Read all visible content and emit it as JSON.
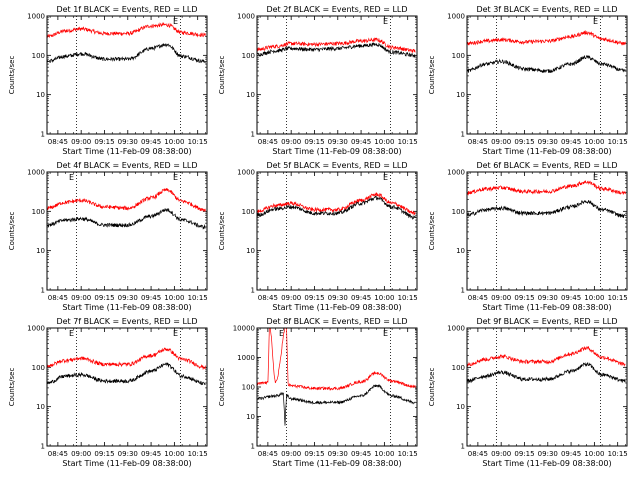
{
  "chart_data": [
    {
      "type": "line",
      "title": "Det 1f BLACK = Events, RED = LLD",
      "xlabel": "Start Time (11-Feb-09 08:38:00)",
      "ylabel": "Counts/sec",
      "yscale": "log",
      "ylim": [
        1,
        1000
      ],
      "yticks": [
        "1",
        "10",
        "100",
        "1000"
      ],
      "xlim": [
        "08:38",
        "10:21"
      ],
      "xticks": [
        "08:45",
        "09:00",
        "09:15",
        "09:30",
        "09:45",
        "10:00",
        "10:15"
      ],
      "markers": [
        {
          "time": "08:57",
          "label": ""
        },
        {
          "time": "10:04",
          "label": "E"
        }
      ],
      "grid": false,
      "series": [
        {
          "color": "#ff0000",
          "x": [
            "08:38",
            "08:50",
            "09:00",
            "09:15",
            "09:30",
            "09:45",
            "09:55",
            "10:05",
            "10:20"
          ],
          "y": [
            300,
            420,
            470,
            360,
            360,
            560,
            600,
            380,
            330
          ]
        },
        {
          "color": "#000000",
          "x": [
            "08:38",
            "08:50",
            "09:00",
            "09:15",
            "09:30",
            "09:45",
            "09:55",
            "10:05",
            "10:20"
          ],
          "y": [
            70,
            95,
            110,
            80,
            80,
            150,
            190,
            95,
            70
          ]
        }
      ]
    },
    {
      "type": "line",
      "title": "Det 2f BLACK = Events, RED = LLD",
      "xlabel": "Start Time (11-Feb-09 08:38:00)",
      "ylabel": "Counts/sec",
      "yscale": "log",
      "ylim": [
        1,
        1000
      ],
      "yticks": [
        "1",
        "10",
        "100",
        "1000"
      ],
      "xlim": [
        "08:38",
        "10:21"
      ],
      "xticks": [
        "08:45",
        "09:00",
        "09:15",
        "09:30",
        "09:45",
        "10:00",
        "10:15"
      ],
      "markers": [
        {
          "time": "08:57",
          "label": ""
        },
        {
          "time": "10:04",
          "label": "E"
        }
      ],
      "grid": false,
      "series": [
        {
          "color": "#ff0000",
          "x": [
            "08:38",
            "08:50",
            "09:00",
            "09:15",
            "09:30",
            "09:45",
            "09:55",
            "10:05",
            "10:20"
          ],
          "y": [
            140,
            170,
            200,
            190,
            200,
            230,
            250,
            160,
            130
          ]
        },
        {
          "color": "#000000",
          "x": [
            "08:38",
            "08:50",
            "09:00",
            "09:15",
            "09:30",
            "09:45",
            "09:55",
            "10:05",
            "10:20"
          ],
          "y": [
            105,
            130,
            150,
            140,
            150,
            175,
            190,
            120,
            100
          ]
        }
      ]
    },
    {
      "type": "line",
      "title": "Det 3f BLACK = Events, RED = LLD",
      "xlabel": "Start Time (11-Feb-09 08:38:00)",
      "ylabel": "Counts/sec",
      "yscale": "log",
      "ylim": [
        1,
        1000
      ],
      "yticks": [
        "1",
        "10",
        "100",
        "1000"
      ],
      "xlim": [
        "08:38",
        "10:21"
      ],
      "xticks": [
        "08:45",
        "09:00",
        "09:15",
        "09:30",
        "09:45",
        "10:00",
        "10:15"
      ],
      "markers": [
        {
          "time": "08:57",
          "label": ""
        },
        {
          "time": "10:04",
          "label": "E"
        }
      ],
      "grid": false,
      "series": [
        {
          "color": "#ff0000",
          "x": [
            "08:38",
            "08:50",
            "09:00",
            "09:15",
            "09:30",
            "09:45",
            "09:55",
            "10:05",
            "10:20"
          ],
          "y": [
            200,
            230,
            250,
            220,
            230,
            300,
            380,
            260,
            200
          ]
        },
        {
          "color": "#000000",
          "x": [
            "08:38",
            "08:50",
            "09:00",
            "09:15",
            "09:30",
            "09:45",
            "09:55",
            "10:05",
            "10:20"
          ],
          "y": [
            40,
            60,
            70,
            45,
            40,
            60,
            90,
            60,
            40
          ]
        }
      ]
    },
    {
      "type": "line",
      "title": "Det 4f BLACK = Events, RED = LLD",
      "xlabel": "Start Time (11-Feb-09 08:38:00)",
      "ylabel": "Counts/sec",
      "yscale": "log",
      "ylim": [
        1,
        1000
      ],
      "yticks": [
        "1",
        "10",
        "100",
        "1000"
      ],
      "xlim": [
        "08:38",
        "10:21"
      ],
      "xticks": [
        "08:45",
        "09:00",
        "09:15",
        "09:30",
        "09:45",
        "10:00",
        "10:15"
      ],
      "markers": [
        {
          "time": "08:57",
          "label": "E"
        },
        {
          "time": "10:04",
          "label": "E"
        }
      ],
      "grid": false,
      "series": [
        {
          "color": "#ff0000",
          "x": [
            "08:38",
            "08:50",
            "09:00",
            "09:15",
            "09:30",
            "09:45",
            "09:55",
            "10:05",
            "10:20"
          ],
          "y": [
            120,
            170,
            190,
            130,
            120,
            220,
            350,
            180,
            110
          ]
        },
        {
          "color": "#000000",
          "x": [
            "08:38",
            "08:50",
            "09:00",
            "09:15",
            "09:30",
            "09:45",
            "09:55",
            "10:05",
            "10:20"
          ],
          "y": [
            45,
            60,
            65,
            45,
            45,
            75,
            110,
            60,
            40
          ]
        }
      ]
    },
    {
      "type": "line",
      "title": "Det 5f BLACK = Events, RED = LLD",
      "xlabel": "Start Time (11-Feb-09 08:38:00)",
      "ylabel": "Counts/sec",
      "yscale": "log",
      "ylim": [
        1,
        1000
      ],
      "yticks": [
        "1",
        "10",
        "100",
        "1000"
      ],
      "xlim": [
        "08:38",
        "10:21"
      ],
      "xticks": [
        "08:45",
        "09:00",
        "09:15",
        "09:30",
        "09:45",
        "10:00",
        "10:15"
      ],
      "markers": [
        {
          "time": "08:57",
          "label": ""
        },
        {
          "time": "10:04",
          "label": "E"
        }
      ],
      "grid": false,
      "series": [
        {
          "color": "#ff0000",
          "x": [
            "08:38",
            "08:50",
            "09:00",
            "09:15",
            "09:30",
            "09:45",
            "09:55",
            "10:05",
            "10:20"
          ],
          "y": [
            100,
            140,
            160,
            110,
            110,
            190,
            270,
            160,
            90
          ]
        },
        {
          "color": "#000000",
          "x": [
            "08:38",
            "08:50",
            "09:00",
            "09:15",
            "09:30",
            "09:45",
            "09:55",
            "10:05",
            "10:20"
          ],
          "y": [
            80,
            115,
            130,
            90,
            90,
            160,
            220,
            130,
            70
          ]
        }
      ]
    },
    {
      "type": "line",
      "title": "Det 6f BLACK = Events, RED = LLD",
      "xlabel": "Start Time (11-Feb-09 08:38:00)",
      "ylabel": "Counts/sec",
      "yscale": "log",
      "ylim": [
        1,
        1000
      ],
      "yticks": [
        "1",
        "10",
        "100",
        "1000"
      ],
      "xlim": [
        "08:38",
        "10:21"
      ],
      "xticks": [
        "08:45",
        "09:00",
        "09:15",
        "09:30",
        "09:45",
        "10:00",
        "10:15"
      ],
      "markers": [
        {
          "time": "08:57",
          "label": ""
        },
        {
          "time": "10:04",
          "label": "E"
        }
      ],
      "grid": false,
      "series": [
        {
          "color": "#ff0000",
          "x": [
            "08:38",
            "08:50",
            "09:00",
            "09:15",
            "09:30",
            "09:45",
            "09:55",
            "10:05",
            "10:20"
          ],
          "y": [
            300,
            370,
            400,
            320,
            320,
            440,
            560,
            380,
            290
          ]
        },
        {
          "color": "#000000",
          "x": [
            "08:38",
            "08:50",
            "09:00",
            "09:15",
            "09:30",
            "09:45",
            "09:55",
            "10:05",
            "10:20"
          ],
          "y": [
            80,
            110,
            120,
            90,
            90,
            130,
            180,
            110,
            75
          ]
        }
      ]
    },
    {
      "type": "line",
      "title": "Det 7f BLACK = Events, RED = LLD",
      "xlabel": "Start Time (11-Feb-09 08:38:00)",
      "ylabel": "Counts/sec",
      "yscale": "log",
      "ylim": [
        1,
        1000
      ],
      "yticks": [
        "1",
        "10",
        "100",
        "1000"
      ],
      "xlim": [
        "08:38",
        "10:21"
      ],
      "xticks": [
        "08:45",
        "09:00",
        "09:15",
        "09:30",
        "09:45",
        "10:00",
        "10:15"
      ],
      "markers": [
        {
          "time": "08:57",
          "label": "E"
        },
        {
          "time": "10:04",
          "label": "E"
        }
      ],
      "grid": false,
      "series": [
        {
          "color": "#ff0000",
          "x": [
            "08:38",
            "08:50",
            "09:00",
            "09:15",
            "09:30",
            "09:45",
            "09:55",
            "10:05",
            "10:20"
          ],
          "y": [
            110,
            150,
            170,
            120,
            120,
            200,
            290,
            160,
            100
          ]
        },
        {
          "color": "#000000",
          "x": [
            "08:38",
            "08:50",
            "09:00",
            "09:15",
            "09:30",
            "09:45",
            "09:55",
            "10:05",
            "10:20"
          ],
          "y": [
            40,
            60,
            65,
            45,
            45,
            80,
            120,
            60,
            38
          ]
        }
      ]
    },
    {
      "type": "line",
      "title": "Det 8f BLACK = Events, RED = LLD",
      "xlabel": "Start Time (11-Feb-09 08:38:00)",
      "ylabel": "Counts/sec",
      "yscale": "log",
      "ylim": [
        1,
        10000
      ],
      "yticks": [
        "1",
        "10",
        "100",
        "1000",
        "10000"
      ],
      "xlim": [
        "08:38",
        "10:21"
      ],
      "xticks": [
        "08:45",
        "09:00",
        "09:15",
        "09:30",
        "09:45",
        "10:00",
        "10:15"
      ],
      "markers": [
        {
          "time": "08:57",
          "label": "E"
        },
        {
          "time": "10:04",
          "label": "E"
        }
      ],
      "grid": false,
      "series": [
        {
          "color": "#ff0000",
          "x": [
            "08:38",
            "08:45",
            "08:46",
            "08:50",
            "08:57",
            "08:58",
            "09:00",
            "09:15",
            "09:30",
            "09:45",
            "09:55",
            "10:05",
            "10:20"
          ],
          "y": [
            130,
            140,
            12000,
            150,
            12000,
            120,
            110,
            90,
            90,
            150,
            300,
            160,
            100
          ]
        },
        {
          "color": "#000000",
          "x": [
            "08:38",
            "08:50",
            "08:55",
            "08:56",
            "08:57",
            "09:00",
            "09:15",
            "09:30",
            "09:45",
            "09:55",
            "10:05",
            "10:20"
          ],
          "y": [
            40,
            50,
            60,
            5,
            50,
            40,
            30,
            30,
            50,
            110,
            50,
            30
          ]
        }
      ]
    },
    {
      "type": "line",
      "title": "Det 9f BLACK = Events, RED = LLD",
      "xlabel": "Start Time (11-Feb-09 08:38:00)",
      "ylabel": "Counts/sec",
      "yscale": "log",
      "ylim": [
        1,
        1000
      ],
      "yticks": [
        "1",
        "10",
        "100",
        "1000"
      ],
      "xlim": [
        "08:38",
        "10:21"
      ],
      "xticks": [
        "08:45",
        "09:00",
        "09:15",
        "09:30",
        "09:45",
        "10:00",
        "10:15"
      ],
      "markers": [
        {
          "time": "08:57",
          "label": ""
        },
        {
          "time": "10:04",
          "label": "E"
        }
      ],
      "grid": false,
      "series": [
        {
          "color": "#ff0000",
          "x": [
            "08:38",
            "08:50",
            "09:00",
            "09:15",
            "09:30",
            "09:45",
            "09:55",
            "10:05",
            "10:20"
          ],
          "y": [
            120,
            160,
            190,
            140,
            140,
            220,
            310,
            180,
            120
          ]
        },
        {
          "color": "#000000",
          "x": [
            "08:38",
            "08:50",
            "09:00",
            "09:15",
            "09:30",
            "09:45",
            "09:55",
            "10:05",
            "10:20"
          ],
          "y": [
            45,
            60,
            75,
            50,
            50,
            80,
            120,
            65,
            45
          ]
        }
      ]
    }
  ]
}
